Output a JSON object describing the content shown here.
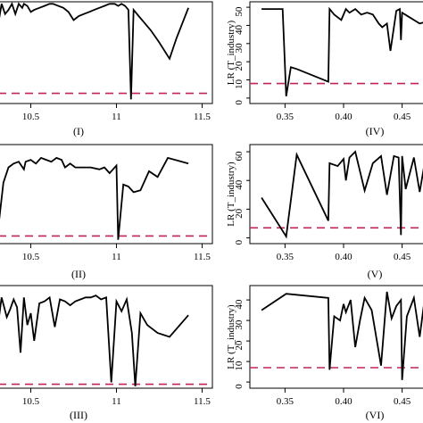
{
  "colors": {
    "series": "#000000",
    "threshold": "#c0245a"
  },
  "chart_data": [
    {
      "type": "line",
      "panel_label": "(I)",
      "ylabel": "",
      "xticks": [
        10.5,
        11,
        11.5
      ],
      "xtick_labels": [
        "10.5",
        "11",
        "11.5"
      ],
      "yticks": [],
      "ytick_labels": [],
      "xlim": [
        10.31,
        11.56
      ],
      "ylim": [
        0,
        50
      ],
      "threshold": 5,
      "x": [
        10.31,
        10.33,
        10.35,
        10.37,
        10.39,
        10.41,
        10.43,
        10.45,
        10.46,
        10.48,
        10.5,
        10.52,
        10.55,
        10.58,
        10.61,
        10.63,
        10.66,
        10.69,
        10.72,
        10.75,
        10.78,
        10.81,
        10.84,
        10.87,
        10.9,
        10.93,
        10.96,
        10.99,
        11.01,
        11.03,
        11.05,
        11.07,
        11.085,
        11.1,
        11.13,
        11.16,
        11.2,
        11.25,
        11.31,
        11.35,
        11.42
      ],
      "y": [
        39,
        49,
        44,
        46,
        49,
        44,
        49,
        47,
        49,
        48,
        45,
        46,
        47,
        48,
        49,
        49,
        48,
        47,
        45,
        41,
        43,
        44,
        45,
        46,
        47,
        48,
        49,
        49,
        48,
        49,
        48,
        46,
        2,
        46,
        43,
        40,
        36,
        30,
        22,
        32,
        47
      ],
      "series": [
        {
          "name": ""
        }
      ]
    },
    {
      "type": "line",
      "panel_label": "(IV)",
      "ylabel": "LR (T_industry)",
      "xticks": [
        0.35,
        0.4,
        0.45
      ],
      "xtick_labels": [
        "0.35",
        "0.40",
        "0.45"
      ],
      "yticks": [
        0,
        10,
        20,
        30,
        40,
        50
      ],
      "ytick_labels": [
        "0",
        "10",
        "20",
        "30",
        "40",
        "50"
      ],
      "xlim": [
        0.32,
        0.48
      ],
      "ylim": [
        -3,
        53
      ],
      "threshold": 8,
      "x": [
        0.33,
        0.348,
        0.351,
        0.355,
        0.36,
        0.387,
        0.388,
        0.392,
        0.398,
        0.402,
        0.405,
        0.41,
        0.415,
        0.42,
        0.425,
        0.43,
        0.433,
        0.437,
        0.44,
        0.445,
        0.448,
        0.449,
        0.45,
        0.455,
        0.46,
        0.465,
        0.47,
        0.475,
        0.48
      ],
      "y": [
        49,
        49,
        1,
        17,
        16,
        9,
        49,
        46,
        43,
        49,
        47,
        49,
        46,
        47,
        46,
        41,
        39,
        41,
        26,
        48,
        49,
        32,
        47,
        45,
        43,
        41,
        42,
        40,
        38
      ],
      "series": [
        {
          "name": ""
        }
      ]
    },
    {
      "type": "line",
      "panel_label": "(II)",
      "ylabel": "",
      "xticks": [
        10.5,
        11,
        11.5
      ],
      "xtick_labels": [
        "10.5",
        "11",
        "11.5"
      ],
      "yticks": [],
      "ytick_labels": [],
      "xlim": [
        10.31,
        11.56
      ],
      "ylim": [
        0,
        52
      ],
      "threshold": 4,
      "x": [
        10.31,
        10.34,
        10.37,
        10.4,
        10.43,
        10.46,
        10.47,
        10.5,
        10.53,
        10.56,
        10.59,
        10.62,
        10.65,
        10.68,
        10.7,
        10.73,
        10.76,
        10.8,
        10.85,
        10.9,
        10.93,
        10.96,
        10.98,
        11.0,
        11.01,
        11.04,
        11.07,
        11.1,
        11.14,
        11.19,
        11.24,
        11.3,
        11.42
      ],
      "y": [
        8,
        32,
        40,
        42,
        43,
        39,
        43,
        44,
        42,
        45,
        44,
        43,
        45,
        44,
        40,
        42,
        40,
        40,
        40,
        39,
        40,
        37,
        39,
        41,
        2,
        31,
        30,
        27,
        28,
        38,
        35,
        45,
        42
      ],
      "series": [
        {
          "name": ""
        }
      ]
    },
    {
      "type": "line",
      "panel_label": "(V)",
      "ylabel": "LR (T_industry)",
      "xticks": [
        0.35,
        0.4,
        0.45
      ],
      "xtick_labels": [
        "0.35",
        "0.40",
        "0.45"
      ],
      "yticks": [
        0,
        20,
        40,
        60
      ],
      "ytick_labels": [
        "0",
        "20",
        "40",
        "60"
      ],
      "xlim": [
        0.32,
        0.48
      ],
      "ylim": [
        -4,
        65
      ],
      "threshold": 7,
      "x": [
        0.33,
        0.351,
        0.36,
        0.387,
        0.388,
        0.395,
        0.4,
        0.402,
        0.405,
        0.41,
        0.418,
        0.425,
        0.432,
        0.437,
        0.443,
        0.447,
        0.449,
        0.45,
        0.453,
        0.46,
        0.465,
        0.47,
        0.475,
        0.48
      ],
      "y": [
        28,
        1,
        58,
        12,
        52,
        50,
        55,
        40,
        56,
        60,
        33,
        52,
        57,
        30,
        57,
        56,
        2,
        57,
        34,
        56,
        32,
        56,
        58,
        56
      ],
      "series": [
        {
          "name": ""
        }
      ]
    },
    {
      "type": "line",
      "panel_label": "(III)",
      "ylabel": "",
      "xticks": [
        10.5,
        11,
        11.5
      ],
      "xtick_labels": [
        "10.5",
        "11",
        "11.5"
      ],
      "yticks": [],
      "ytick_labels": [],
      "xlim": [
        10.31,
        11.56
      ],
      "ylim": [
        0,
        52
      ],
      "threshold": 2,
      "x": [
        10.31,
        10.33,
        10.36,
        10.38,
        10.4,
        10.42,
        10.44,
        10.46,
        10.48,
        10.5,
        10.52,
        10.55,
        10.58,
        10.61,
        10.64,
        10.67,
        10.7,
        10.73,
        10.76,
        10.79,
        10.82,
        10.85,
        10.88,
        10.91,
        10.94,
        10.97,
        11.0,
        11.03,
        11.06,
        11.09,
        11.11,
        11.14,
        11.18,
        11.24,
        11.31,
        11.42
      ],
      "y": [
        33,
        46,
        36,
        40,
        45,
        41,
        18,
        46,
        32,
        38,
        24,
        43,
        44,
        46,
        31,
        45,
        44,
        42,
        44,
        45,
        46,
        46,
        47,
        45,
        46,
        3,
        44,
        39,
        45,
        28,
        1,
        38,
        32,
        28,
        26,
        37
      ],
      "series": [
        {
          "name": ""
        }
      ]
    },
    {
      "type": "line",
      "panel_label": "(VI)",
      "ylabel": "LR (T_industry)",
      "xticks": [
        0.35,
        0.4,
        0.45
      ],
      "xtick_labels": [
        "0.35",
        "0.40",
        "0.45"
      ],
      "yticks": [
        0,
        10,
        20,
        30,
        40
      ],
      "ytick_labels": [
        "0",
        "10",
        "20",
        "30",
        "40"
      ],
      "xlim": [
        0.32,
        0.48
      ],
      "ylim": [
        -3,
        47
      ],
      "threshold": 7,
      "x": [
        0.33,
        0.351,
        0.387,
        0.388,
        0.392,
        0.397,
        0.4,
        0.402,
        0.406,
        0.41,
        0.414,
        0.418,
        0.424,
        0.432,
        0.437,
        0.441,
        0.445,
        0.449,
        0.45,
        0.454,
        0.46,
        0.465,
        0.47,
        0.473,
        0.478,
        0.48
      ],
      "y": [
        35,
        43,
        41,
        6,
        32,
        30,
        38,
        34,
        40,
        17,
        30,
        41,
        35,
        8,
        44,
        31,
        37,
        40,
        1,
        32,
        41,
        22,
        44,
        33,
        42,
        43
      ],
      "series": [
        {
          "name": ""
        }
      ]
    }
  ]
}
